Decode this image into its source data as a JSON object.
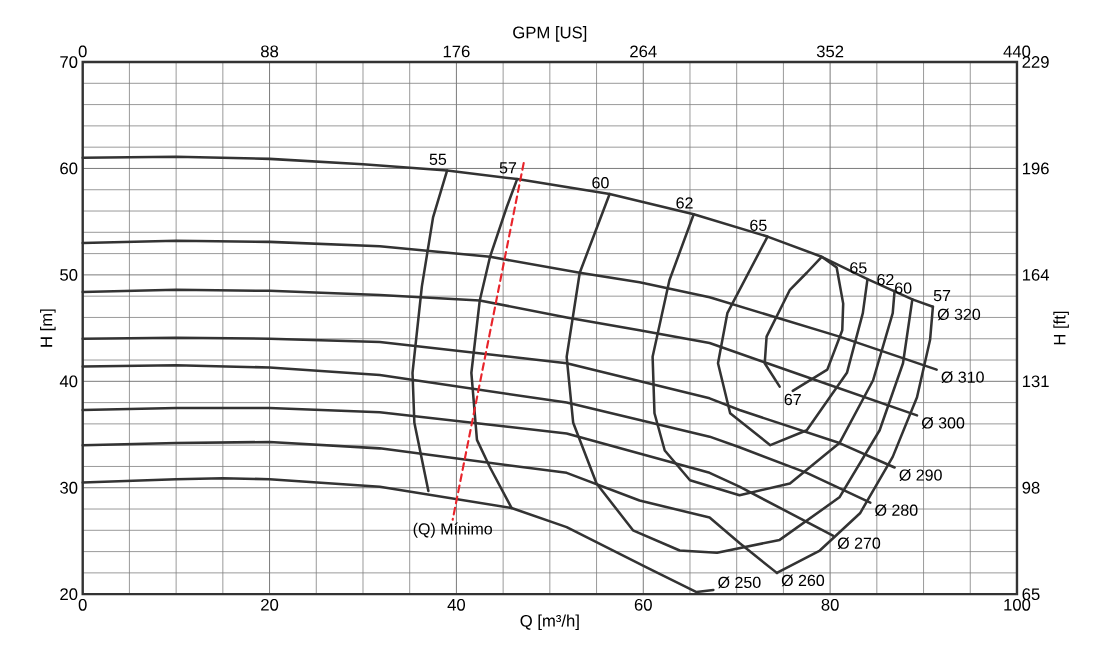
{
  "chart_data": {
    "type": "line",
    "xlabel": "Q [m³/h]",
    "ylabel": "H [m]",
    "y2label": "H [ft]",
    "x2label": "GPM [US]",
    "xlim": [
      0,
      100
    ],
    "xticks": [
      0,
      20,
      40,
      60,
      80,
      100
    ],
    "ylim": [
      20,
      70
    ],
    "yticks": [
      20,
      30,
      40,
      50,
      60,
      70
    ],
    "x2lim": [
      0,
      440
    ],
    "x2ticks": [
      0,
      88,
      176,
      264,
      352,
      440
    ],
    "y2lim": [
      65.4,
      229
    ],
    "y2ticks": [
      {
        "value": 65.4,
        "label": "65"
      },
      {
        "value": 98.12,
        "label": "98"
      },
      {
        "value": 130.84,
        "label": "131"
      },
      {
        "value": 163.56,
        "label": "164"
      },
      {
        "value": 196.28,
        "label": "196"
      },
      229
    ],
    "grid": true,
    "series": [
      {
        "name": "Ø 320",
        "color": "#333333",
        "x": [
          0,
          10,
          20,
          30,
          39.0,
          46.5,
          56.4,
          65.4,
          73.3,
          79.1,
          84.0,
          88.8,
          91.0
        ],
        "values": [
          61.0,
          61.1,
          60.9,
          60.4,
          59.8,
          59.0,
          57.6,
          55.7,
          53.6,
          51.7,
          49.6,
          47.7,
          47.0
        ]
      },
      {
        "name": "Ø 310",
        "color": "#333333",
        "x": [
          0,
          10,
          20,
          31.8,
          43.6,
          53.2,
          59.6,
          67.1,
          81.0,
          91.4
        ],
        "values": [
          53.0,
          53.2,
          53.1,
          52.7,
          51.7,
          50.2,
          49.3,
          47.9,
          44.2,
          41.1
        ]
      },
      {
        "name": "Ø 300",
        "color": "#333333",
        "x": [
          0,
          10,
          20,
          31.8,
          42.5,
          51.8,
          59.6,
          67.1,
          77.5,
          89.3
        ],
        "values": [
          48.4,
          48.6,
          48.5,
          48.1,
          47.6,
          46.0,
          44.8,
          43.6,
          40.4,
          36.8
        ]
      },
      {
        "name": "Ø 290",
        "color": "#333333",
        "x": [
          0,
          10,
          20,
          31.8,
          51.8,
          67.1,
          70.3,
          81.0,
          86.9
        ],
        "values": [
          44.0,
          44.1,
          44.0,
          43.7,
          41.7,
          38.4,
          37.3,
          34.2,
          31.9
        ]
      },
      {
        "name": "Ø 280",
        "color": "#333333",
        "x": [
          0,
          10,
          20,
          31.8,
          51.8,
          67.1,
          70.3,
          77.5,
          84.3
        ],
        "values": [
          41.4,
          41.5,
          41.3,
          40.6,
          38.0,
          34.8,
          33.8,
          31.4,
          28.6
        ]
      },
      {
        "name": "Ø 270",
        "color": "#333333",
        "x": [
          0,
          10,
          20,
          31.8,
          51.8,
          67.1,
          70.3,
          80.3
        ],
        "values": [
          37.3,
          37.5,
          37.5,
          37.1,
          35.1,
          31.4,
          30.1,
          25.5
        ]
      },
      {
        "name": "Ø 260",
        "color": "#333333",
        "x": [
          0,
          10,
          20,
          31.8,
          51.8,
          59.6,
          67.1,
          70.3,
          74.3
        ],
        "values": [
          34.0,
          34.2,
          34.3,
          33.7,
          31.4,
          28.8,
          27.2,
          24.8,
          22.0
        ]
      },
      {
        "name": "Ø 250",
        "color": "#333333",
        "x": [
          0,
          10,
          15,
          20,
          31.8,
          45.9,
          51.8,
          60.4,
          65.7,
          67.5
        ],
        "values": [
          30.5,
          30.8,
          30.9,
          30.8,
          30.1,
          28.1,
          26.3,
          22.5,
          20.2,
          20.4
        ]
      },
      {
        "name": "55",
        "color": "#333333",
        "x": [
          37.0,
          35.5,
          35.3,
          36.3,
          37.5,
          39.0
        ],
        "values": [
          29.7,
          36.1,
          40.8,
          48.9,
          55.4,
          59.8
        ]
      },
      {
        "name": "57",
        "color": "#333333",
        "x": [
          74.3,
          78.9,
          83.2,
          86.7,
          89.3,
          90.7,
          91.0
        ],
        "values": [
          22.0,
          24.1,
          27.6,
          32.9,
          38.5,
          43.9,
          47.0
        ]
      },
      {
        "name": "57",
        "color": "#333333",
        "x": [
          45.9,
          43.6,
          42.2,
          41.6,
          42.5,
          43.6,
          45.4,
          46.5
        ],
        "values": [
          28.1,
          31.9,
          34.5,
          40.8,
          47.6,
          51.7,
          56.4,
          59.0
        ]
      },
      {
        "name": "60",
        "color": "#333333",
        "x": [
          88.8,
          87.8,
          85.3,
          81.0,
          74.6,
          67.9,
          63.9,
          58.9,
          55.0,
          52.5,
          51.8,
          53.2,
          56.4
        ],
        "values": [
          47.7,
          41.7,
          35.4,
          29.1,
          25.1,
          23.9,
          24.1,
          26.0,
          30.4,
          36.1,
          42.3,
          50.2,
          57.6
        ]
      },
      {
        "name": "62",
        "color": "#333333",
        "x": [
          86.9,
          86.7,
          84.6,
          81.0,
          75.7,
          70.3,
          65.0,
          62.3,
          61.2,
          61.0,
          62.8,
          65.4
        ],
        "values": [
          48.5,
          46.4,
          40.1,
          34.2,
          30.4,
          29.3,
          30.7,
          33.5,
          37.0,
          42.3,
          49.5,
          55.7
        ]
      },
      {
        "name": "65",
        "color": "#333333",
        "x": [
          84.0,
          83.5,
          81.8,
          77.5,
          73.6,
          69.3,
          68.0,
          69.0,
          73.3
        ],
        "values": [
          49.6,
          46.4,
          40.8,
          35.4,
          34.0,
          37.0,
          41.7,
          46.4,
          53.6
        ]
      },
      {
        "name": "67",
        "color": "#333333",
        "x": [
          74.6,
          73.0,
          73.2,
          75.7,
          77.5,
          79.1,
          80.7,
          81.4,
          81.3,
          79.7,
          76.0
        ],
        "values": [
          39.5,
          41.7,
          44.2,
          48.6,
          50.2,
          51.7,
          50.7,
          47.3,
          44.8,
          41.1,
          39.1
        ]
      },
      {
        "name": "(Q) Mínimo",
        "color": "#e8242b",
        "line_style": "dashed",
        "x": [
          47.2,
          39.6
        ],
        "values": [
          60.5,
          27.0
        ]
      }
    ],
    "annotations": [
      {
        "text": "65",
        "x": 84.0,
        "y": 49.6
      },
      {
        "text": "62",
        "x": 86.9,
        "y": 48.5
      },
      {
        "text": "60",
        "x": 88.8,
        "y": 47.7
      }
    ]
  }
}
